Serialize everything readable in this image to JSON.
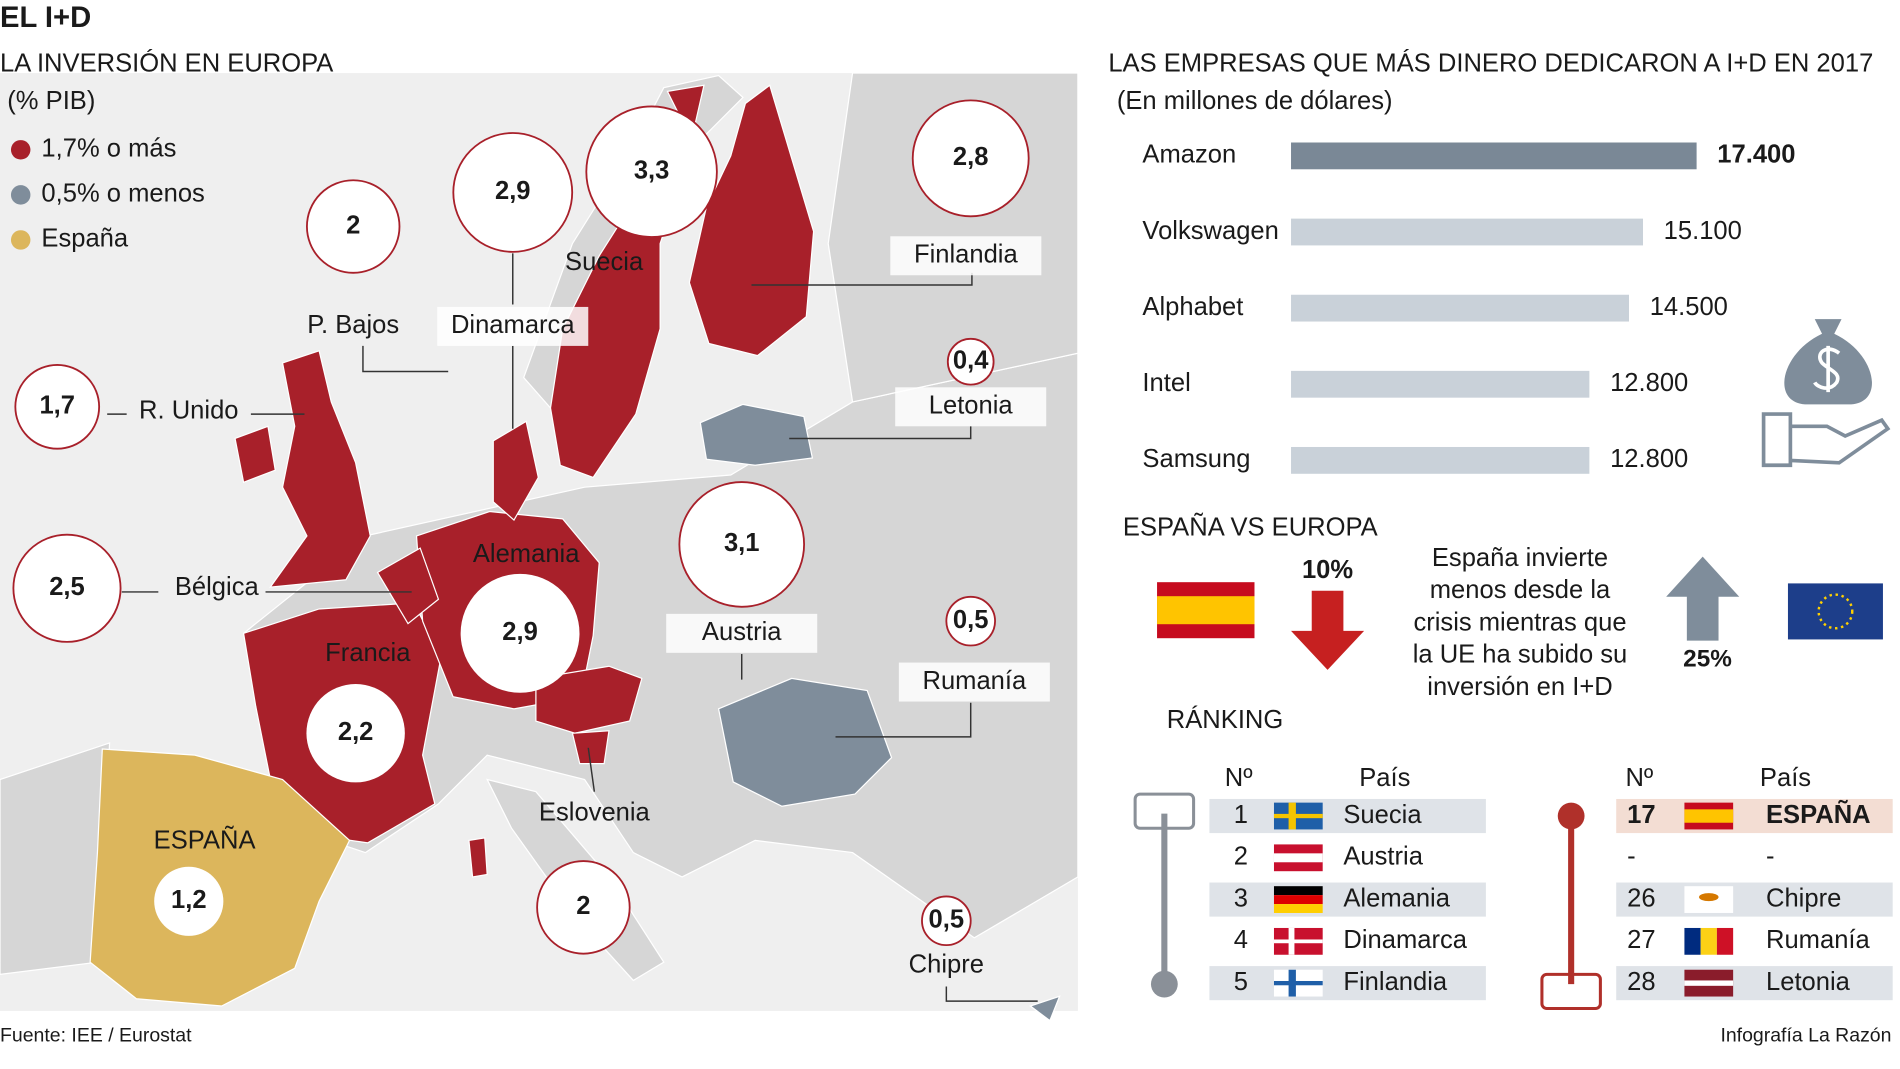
{
  "header": {
    "title": "EL I+D"
  },
  "map": {
    "title": "LA INVERSIÓN EN EUROPA",
    "subtitle": "(% PIB)",
    "legend": [
      {
        "label": "1,7% o más",
        "color": "#a8202a"
      },
      {
        "label": "0,5% o menos",
        "color": "#7f8d9b"
      },
      {
        "label": "España",
        "color": "#dcb65c"
      }
    ],
    "countries": [
      {
        "name": "Suecia",
        "value": 3.3,
        "value_label": "3,3"
      },
      {
        "name": "Finlandia",
        "value": 2.8,
        "value_label": "2,8"
      },
      {
        "name": "P. Bajos",
        "value": 2,
        "value_label": "2"
      },
      {
        "name": "Dinamarca",
        "value": 2.9,
        "value_label": "2,9"
      },
      {
        "name": "R. Unido",
        "value": 1.7,
        "value_label": "1,7"
      },
      {
        "name": "Letonia",
        "value": 0.4,
        "value_label": "0,4"
      },
      {
        "name": "Bélgica",
        "value": 2.5,
        "value_label": "2,5"
      },
      {
        "name": "Alemania",
        "value": 2.9,
        "value_label": "2,9"
      },
      {
        "name": "Austria",
        "value": 3.1,
        "value_label": "3,1"
      },
      {
        "name": "Rumanía",
        "value": 0.5,
        "value_label": "0,5"
      },
      {
        "name": "Francia",
        "value": 2.2,
        "value_label": "2,2"
      },
      {
        "name": "Eslovenia",
        "value": 2,
        "value_label": "2"
      },
      {
        "name": "ESPAÑA",
        "value": 1.2,
        "value_label": "1,2"
      },
      {
        "name": "Chipre",
        "value": 0.5,
        "value_label": "0,5"
      }
    ]
  },
  "chart_data": {
    "type": "bar",
    "orientation": "horizontal",
    "title": "LAS EMPRESAS QUE MÁS DINERO DEDICARON A I+D EN 2017",
    "subtitle": "(En millones de dólares)",
    "categories": [
      "Amazon",
      "Volkswagen",
      "Alphabet",
      "Intel",
      "Samsung"
    ],
    "values": [
      17400,
      15100,
      14500,
      12800,
      12800
    ],
    "value_labels": [
      "17.400",
      "15.100",
      "14.500",
      "12.800",
      "12.800"
    ],
    "colors": [
      "#7a8896",
      "#c9d1d9",
      "#c9d1d9",
      "#c9d1d9",
      "#c9d1d9"
    ]
  },
  "comparison": {
    "title": "ESPAÑA VS EUROPA",
    "spain_change": "10%",
    "text": [
      "España invierte",
      "menos desde la",
      "crisis mientras que",
      "la UE ha subido su",
      "inversión en I+D"
    ],
    "europe_change": "25%"
  },
  "ranking": {
    "title": "RÁNKING",
    "headers": [
      "Nº",
      "País"
    ],
    "left": [
      [
        1,
        "Suecia"
      ],
      [
        2,
        "Austria"
      ],
      [
        3,
        "Alemania"
      ],
      [
        4,
        "Dinamarca"
      ],
      [
        5,
        "Finlandia"
      ]
    ],
    "right": [
      [
        17,
        "ESPAÑA"
      ],
      [
        "-",
        "-"
      ],
      [
        26,
        "Chipre"
      ],
      [
        27,
        "Rumanía"
      ],
      [
        28,
        "Letonia"
      ]
    ]
  },
  "footer": {
    "source": "Fuente: IEE / Eurostat",
    "credit": "Infografía La Razón"
  }
}
